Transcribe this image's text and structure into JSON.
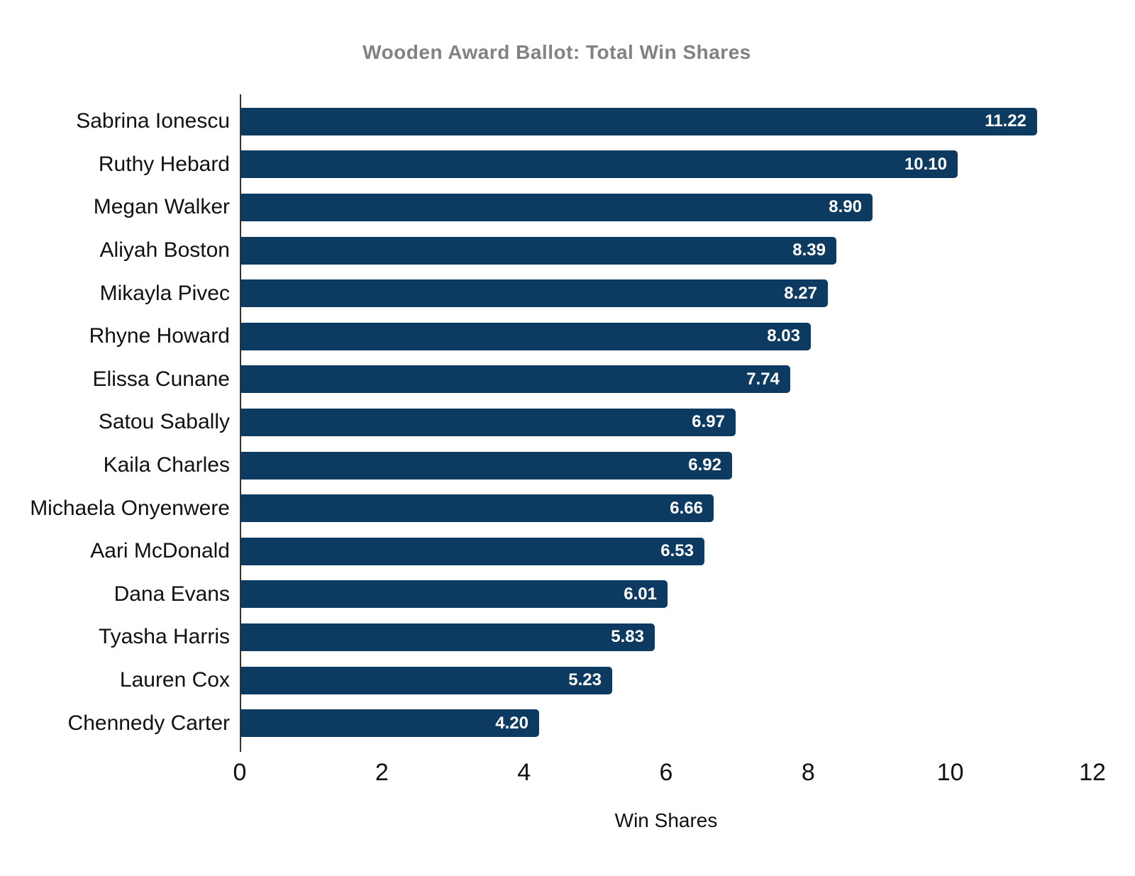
{
  "chart_data": {
    "type": "bar",
    "orientation": "horizontal",
    "title": "Wooden Award Ballot: Total Win Shares",
    "xlabel": "Win Shares",
    "ylabel": "",
    "categories": [
      "Sabrina Ionescu",
      "Ruthy Hebard",
      "Megan Walker",
      "Aliyah Boston",
      "Mikayla Pivec",
      "Rhyne Howard",
      "Elissa Cunane",
      "Satou Sabally",
      "Kaila Charles",
      "Michaela Onyenwere",
      "Aari McDonald",
      "Dana Evans",
      "Tyasha Harris",
      "Lauren Cox",
      "Chennedy Carter"
    ],
    "values": [
      11.22,
      10.1,
      8.9,
      8.39,
      8.27,
      8.03,
      7.74,
      6.97,
      6.92,
      6.66,
      6.53,
      6.01,
      5.83,
      5.23,
      4.2
    ],
    "value_labels": [
      "11.22",
      "10.10",
      "8.90",
      "8.39",
      "8.27",
      "8.03",
      "7.74",
      "6.97",
      "6.92",
      "6.66",
      "6.53",
      "6.01",
      "5.83",
      "5.23",
      "4.20"
    ],
    "xlim": [
      0,
      12
    ],
    "x_ticks": [
      0,
      2,
      4,
      6,
      8,
      10,
      12
    ],
    "grid": false,
    "legend": false,
    "colors": {
      "bar": "#0d3a60",
      "title": "#808285",
      "axis_text": "#111111",
      "value_text": "#ffffff",
      "axis_line": "#333333",
      "background": "#ffffff"
    }
  }
}
